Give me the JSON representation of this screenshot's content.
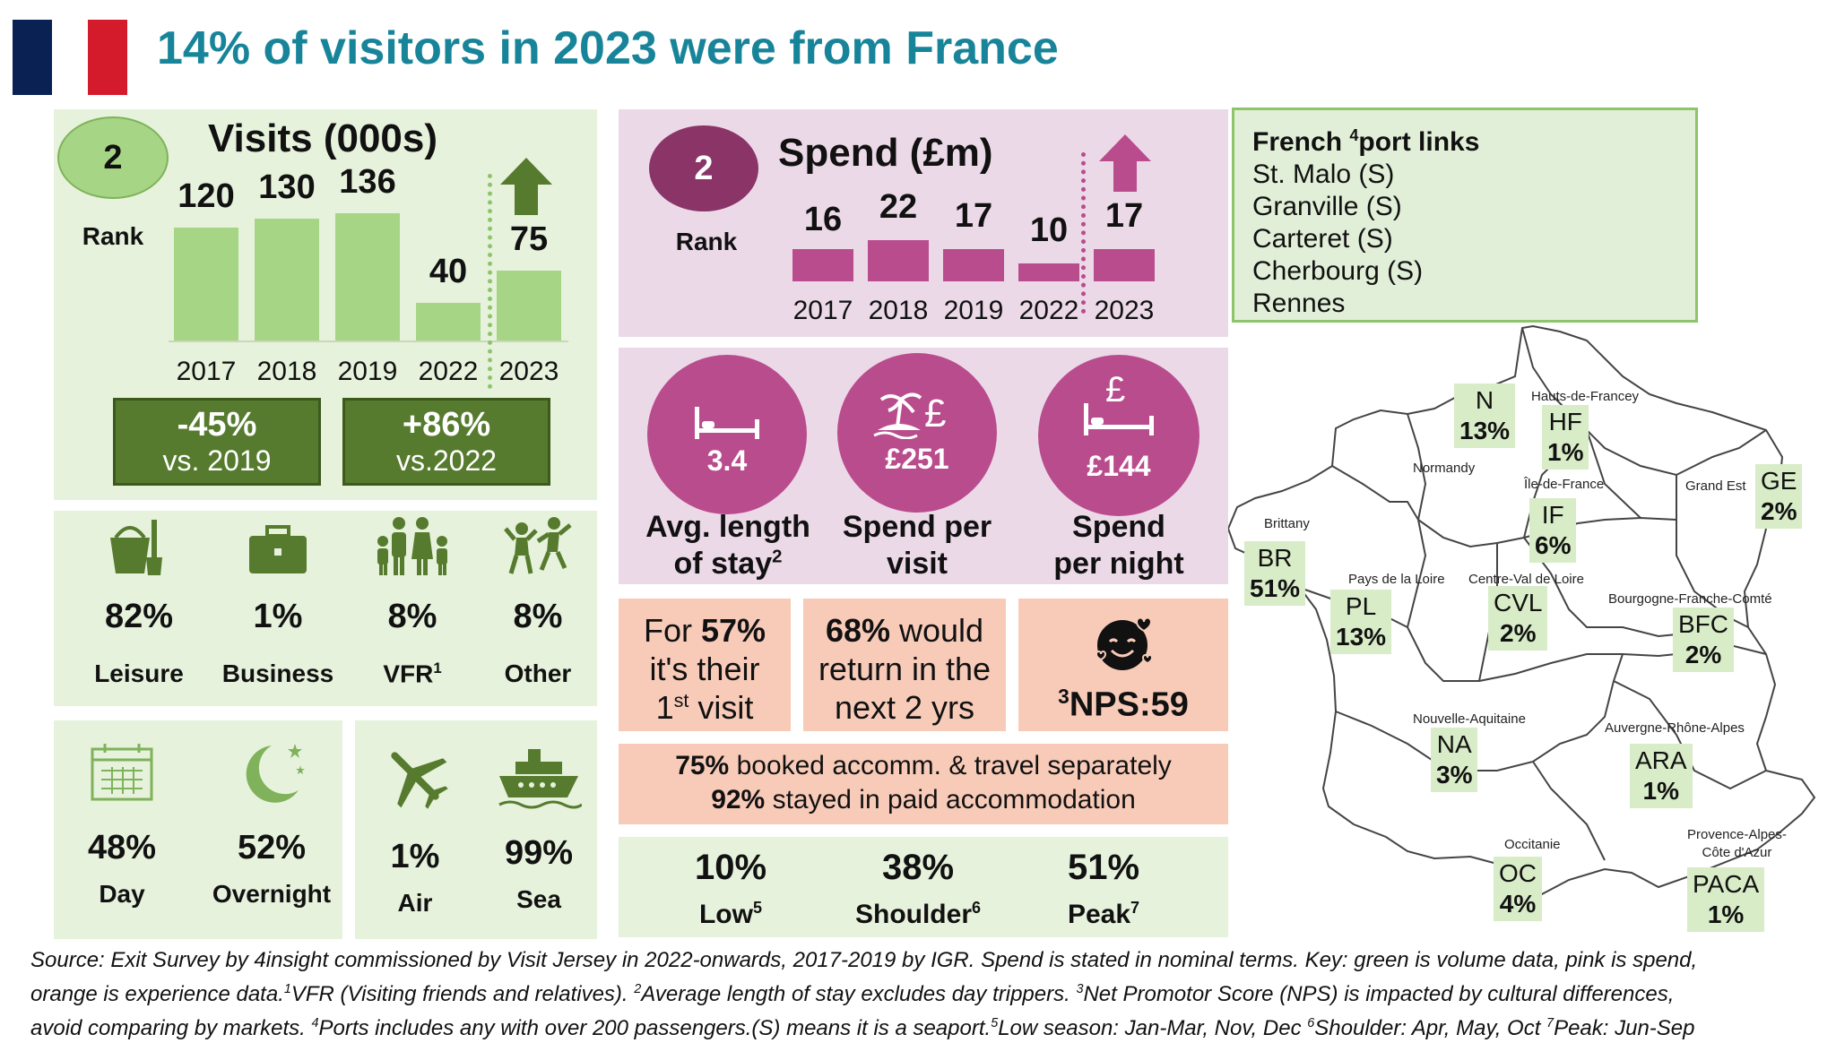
{
  "title": "14% of visitors in 2023 were from France",
  "colors": {
    "flag_blue": "#0a2253",
    "flag_red": "#d41b2c",
    "title": "#17849a",
    "green_bar": "#a6d685",
    "pink_bar": "#b94c8d",
    "dark_green": "#567b2e"
  },
  "visits": {
    "heading": "Visits (000s)",
    "rank_value": "2",
    "rank_label": "Rank",
    "change_2019_pct": "-45%",
    "change_2019_label": "vs. 2019",
    "change_2022_pct": "+86%",
    "change_2022_label": "vs.2022",
    "arrow": "up-arrow-icon"
  },
  "spend": {
    "heading": "Spend (£m)",
    "rank_value": "2",
    "rank_label": "Rank",
    "arrow": "up-arrow-icon"
  },
  "chart_data": [
    {
      "type": "bar",
      "title": "Visits (000s)",
      "categories": [
        "2017",
        "2018",
        "2019",
        "2022",
        "2023"
      ],
      "values": [
        120,
        130,
        136,
        40,
        75
      ],
      "value_labels": [
        "120",
        "130",
        "136",
        "40",
        "75"
      ]
    },
    {
      "type": "bar",
      "title": "Spend (£m)",
      "categories": [
        "2017",
        "2018",
        "2019",
        "2022",
        "2023"
      ],
      "values": [
        16,
        22,
        17,
        10,
        17
      ],
      "value_labels": [
        "16",
        "22",
        "17",
        "10",
        "17"
      ]
    }
  ],
  "purpose": [
    {
      "icon": "bucket-spade-icon",
      "pct": "82%",
      "label": "Leisure"
    },
    {
      "icon": "briefcase-icon",
      "pct": "1%",
      "label": "Business"
    },
    {
      "icon": "family-icon",
      "pct": "8%",
      "label": "VFR",
      "sup": "1"
    },
    {
      "icon": "people-dancing-icon",
      "pct": "8%",
      "label": "Other"
    }
  ],
  "trip": [
    {
      "icon": "calendar-icon",
      "pct": "48%",
      "label": "Day"
    },
    {
      "icon": "moon-stars-icon",
      "pct": "52%",
      "label": "Overnight"
    }
  ],
  "transport": [
    {
      "icon": "airplane-icon",
      "pct": "1%",
      "label": "Air"
    },
    {
      "icon": "ship-icon",
      "pct": "99%",
      "label": "Sea"
    }
  ],
  "stay": [
    {
      "icon": "bed-icon",
      "value": "3.4",
      "label_line1": "Avg. length",
      "label_line2": "of stay",
      "sup": "2"
    },
    {
      "icon": "island-pound-icon",
      "value": "£251",
      "label_line1": "Spend per",
      "label_line2": "visit"
    },
    {
      "icon": "bed-pound-icon",
      "value": "£144",
      "label_line1": "Spend",
      "label_line2": "per night"
    }
  ],
  "experience": {
    "first_visit_pre": "For ",
    "first_visit_pct": "57%",
    "first_visit_mid": "it's their",
    "first_visit_line3": "1",
    "first_visit_sup": "st",
    "first_visit_end": " visit",
    "return_pct": "68%",
    "return_l1": " would",
    "return_l2": "return in the",
    "return_l3": "next 2 yrs",
    "nps_sup": "3",
    "nps_text": "NPS:59",
    "nps_icon": "smiling-face-with-hearts-icon",
    "booked_pct": "75%",
    "booked_text": " booked accomm. & travel separately",
    "paid_pct": "92%",
    "paid_text": " stayed in paid accommodation"
  },
  "season": [
    {
      "pct": "10%",
      "label": "Low",
      "sup": "5"
    },
    {
      "pct": "38%",
      "label": "Shoulder",
      "sup": "6"
    },
    {
      "pct": "51%",
      "label": "Peak",
      "sup": "7"
    }
  ],
  "ports": {
    "heading_pre": "French ",
    "heading_sup": "4",
    "heading_post": "port links",
    "items": [
      "St. Malo (S)",
      "Granville (S)",
      "Carteret (S)",
      "Cherbourg (S)",
      "Rennes"
    ]
  },
  "regions": [
    {
      "name": "Brittany",
      "code": "BR",
      "pct": "51%"
    },
    {
      "name": "Normandy",
      "code": "N",
      "pct": "13%"
    },
    {
      "name": "Hauts-de-Francey",
      "code": "HF",
      "pct": "1%"
    },
    {
      "name": "Île-de-France",
      "code": "IF",
      "pct": "6%"
    },
    {
      "name": "Grand Est",
      "code": "GE",
      "pct": "2%"
    },
    {
      "name": "Pays de la Loire",
      "code": "PL",
      "pct": "13%"
    },
    {
      "name": "Centre-Val de Loire",
      "code": "CVL",
      "pct": "2%"
    },
    {
      "name": "Bourgogne-Franche-Comté",
      "code": "BFC",
      "pct": "2%"
    },
    {
      "name": "Nouvelle-Aquitaine",
      "code": "NA",
      "pct": "3%"
    },
    {
      "name": "Auvergne-Rhône-Alpes",
      "code": "ARA",
      "pct": "1%"
    },
    {
      "name": "Occitanie",
      "code": "OC",
      "pct": "4%"
    },
    {
      "name": "Provence-Alpes-Côte d'Azur",
      "code": "PACA",
      "pct": "1%"
    }
  ],
  "region_name_lines": {
    "paca_l1": "Provence-Alpes-",
    "paca_l2": "Côte d'Azur"
  },
  "footer": {
    "line1": "Source: Exit Survey by 4insight commissioned by Visit Jersey in 2022-onwards, 2017-2019 by IGR. Spend is stated in nominal terms. Key: green is volume data, pink is spend,",
    "line2a": "orange is experience data.",
    "line2b": "VFR (Visiting friends and relatives). ",
    "line2c": "Average length of stay excludes day trippers. ",
    "line2d": "Net Promotor Score (NPS) is impacted by cultural differences,",
    "line3a": "avoid comparing by markets. ",
    "line3b": "Ports includes any with over 200 passengers.(S) means it is a seaport.",
    "line3c": "Low season: Jan-Mar, Nov, Dec ",
    "line3d": "Shoulder: Apr, May, Oct ",
    "line3e": "Peak: Jun-Sep"
  }
}
